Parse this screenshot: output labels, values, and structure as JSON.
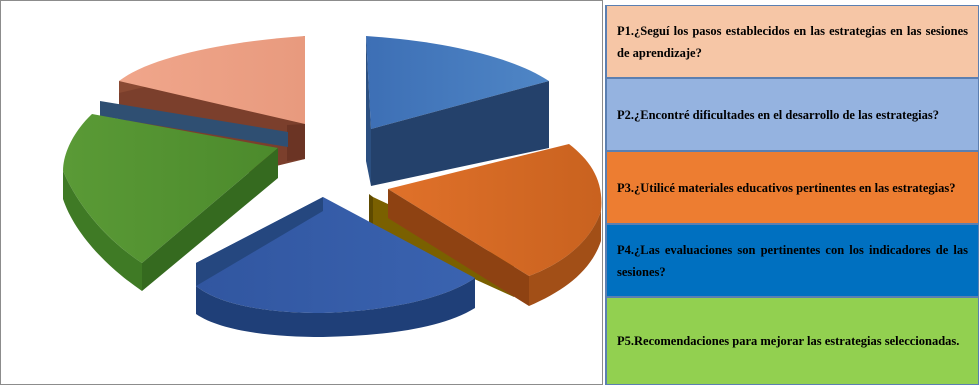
{
  "chart_data": {
    "type": "pie",
    "style": "3d-exploded",
    "title": "",
    "series": [
      {
        "name": "P1.¿Seguí los pasos establecidos en las estrategias en las sesiones de aprendizaje?",
        "value": 20,
        "color": "#f6c6a6"
      },
      {
        "name": "P2.¿Encontré dificultades en el desarrollo de las estrategias?",
        "value": 20,
        "color": "#95b3e0"
      },
      {
        "name": "P3.¿Utilicé materiales educativos pertinentes en las estrategias?",
        "value": 20,
        "color": "#ed7d31"
      },
      {
        "name": "P4.¿Las evaluaciones son pertinentes con los indicadores de las sesiones?",
        "value": 20,
        "color": "#0070c0"
      },
      {
        "name": "P5.Recomendaciones para mejorar las estrategias seleccionadas.",
        "value": 20,
        "color": "#92d050"
      }
    ],
    "legend_position": "right"
  }
}
